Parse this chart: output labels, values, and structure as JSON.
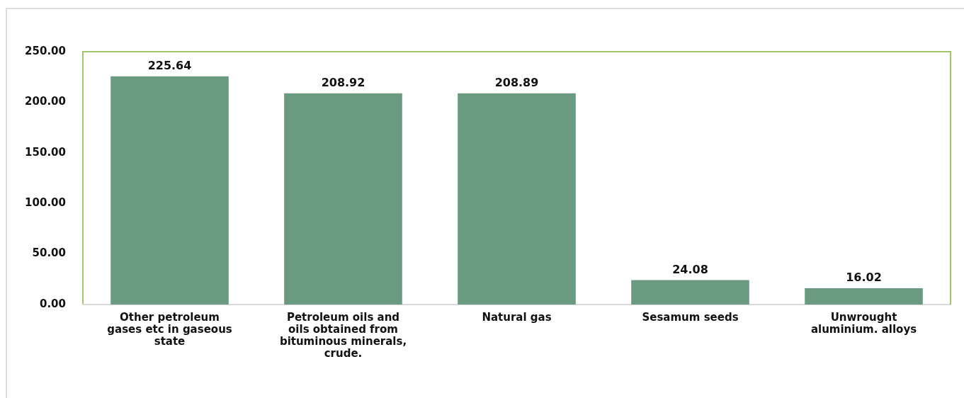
{
  "chart_data": {
    "type": "bar",
    "categories": [
      "Other petroleum gases etc in gaseous state",
      "Petroleum oils and oils obtained from bituminous minerals, crude.",
      "Natural gas",
      "Sesamum seeds",
      "Unwrought aluminium. alloys"
    ],
    "values": [
      225.64,
      208.92,
      208.89,
      24.08,
      16.02
    ],
    "color": "#6a9a80",
    "ylim": [
      0,
      250
    ],
    "yticks": [
      {
        "value": 0,
        "label": "0.00"
      },
      {
        "value": 50,
        "label": "50.00"
      },
      {
        "value": 100,
        "label": "100.00"
      },
      {
        "value": 150,
        "label": "150.00"
      },
      {
        "value": 200,
        "label": "200.00"
      },
      {
        "value": 250,
        "label": "250.00"
      }
    ],
    "grid": false,
    "data_labels": true
  }
}
